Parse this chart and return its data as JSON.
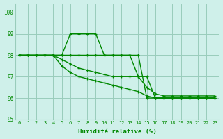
{
  "xlabel": "Humidité relative (%)",
  "xlim": [
    -0.5,
    23.5
  ],
  "ylim": [
    95,
    100.4
  ],
  "yticks": [
    95,
    96,
    97,
    98,
    99,
    100
  ],
  "xtick_labels": [
    "0",
    "1",
    "2",
    "3",
    "4",
    "5",
    "6",
    "7",
    "8",
    "9",
    "10",
    "11",
    "12",
    "13",
    "14",
    "15",
    "16",
    "17",
    "18",
    "19",
    "20",
    "21",
    "22",
    "23"
  ],
  "background_color": "#cff0ea",
  "grid_color": "#99ccbb",
  "line_color": "#008800",
  "lines": [
    [
      98,
      98,
      98,
      98,
      98,
      98,
      99,
      99,
      99,
      99,
      98,
      98,
      98,
      98,
      98,
      96,
      96,
      96,
      96,
      96,
      96,
      96,
      96,
      96
    ],
    [
      98,
      98,
      98,
      98,
      98,
      98,
      98,
      98,
      98,
      98,
      98,
      98,
      98,
      98,
      97,
      97,
      96,
      96,
      96,
      96,
      96,
      96,
      96,
      96
    ],
    [
      98,
      98,
      98,
      98,
      98,
      97.8,
      97.6,
      97.4,
      97.3,
      97.2,
      97.1,
      97.0,
      97.0,
      97.0,
      97.0,
      96.5,
      96.2,
      96.1,
      96.1,
      96.1,
      96.1,
      96.1,
      96.1,
      96.1
    ],
    [
      98,
      98,
      98,
      98,
      98,
      97.5,
      97.2,
      97.0,
      96.9,
      96.8,
      96.7,
      96.6,
      96.5,
      96.4,
      96.3,
      96.1,
      96.0,
      96.0,
      96.0,
      96.0,
      96.0,
      96.0,
      96.0,
      96.0
    ]
  ],
  "marker": "+",
  "markersize": 3.5,
  "linewidth": 1.0
}
